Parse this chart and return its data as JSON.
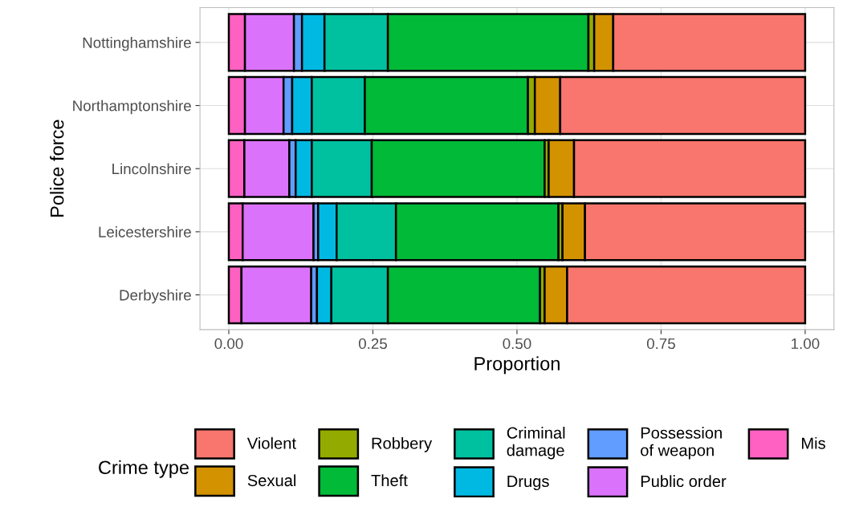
{
  "chart_data": {
    "type": "bar",
    "orientation": "horizontal",
    "stacked": true,
    "xlabel": "Proportion",
    "ylabel": "Police force",
    "legend_title": "Crime type",
    "categories": [
      "Nottinghamshire",
      "Northamptonshire",
      "Lincolnshire",
      "Leicestershire",
      "Derbyshire"
    ],
    "series": [
      {
        "name": "Mis",
        "color": "#ff61c3",
        "values": [
          0.028,
          0.028,
          0.027,
          0.024,
          0.022
        ]
      },
      {
        "name": "Public order",
        "color": "#db72fb",
        "values": [
          0.085,
          0.067,
          0.078,
          0.123,
          0.121
        ]
      },
      {
        "name": "Possession of weapon",
        "color": "#619cff",
        "values": [
          0.014,
          0.015,
          0.011,
          0.008,
          0.01
        ]
      },
      {
        "name": "Drugs",
        "color": "#00b9e3",
        "values": [
          0.039,
          0.034,
          0.028,
          0.032,
          0.025
        ]
      },
      {
        "name": "Criminal damage",
        "color": "#00c19f",
        "values": [
          0.11,
          0.092,
          0.104,
          0.103,
          0.098
        ]
      },
      {
        "name": "Theft",
        "color": "#00ba38",
        "values": [
          0.348,
          0.283,
          0.3,
          0.282,
          0.264
        ]
      },
      {
        "name": "Robbery",
        "color": "#93aa00",
        "values": [
          0.01,
          0.012,
          0.007,
          0.007,
          0.008
        ]
      },
      {
        "name": "Sexual",
        "color": "#d39200",
        "values": [
          0.033,
          0.044,
          0.044,
          0.039,
          0.039
        ]
      },
      {
        "name": "Violent",
        "color": "#f8766d",
        "values": [
          0.333,
          0.425,
          0.401,
          0.382,
          0.413
        ]
      }
    ],
    "xlim": [
      -0.05,
      1.05
    ],
    "xticks": [
      {
        "value": 0,
        "label": "0.00"
      },
      {
        "value": 0.25,
        "label": "0.25"
      },
      {
        "value": 0.5,
        "label": "0.50"
      },
      {
        "value": 0.75,
        "label": "0.75"
      },
      {
        "value": 1,
        "label": "1.00"
      }
    ],
    "grid": true,
    "legend": "bottom"
  }
}
